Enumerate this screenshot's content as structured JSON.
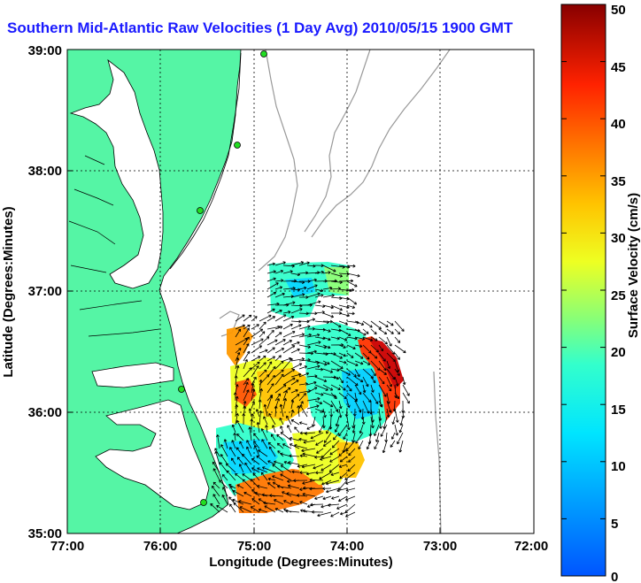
{
  "title": "Southern Mid-Atlantic Raw Velocities (1 Day Avg) 2010/05/15 1900 GMT",
  "map": {
    "x_axis": {
      "label": "Longitude (Degrees:Minutes)",
      "ticks": [
        "77:00",
        "76:00",
        "75:00",
        "74:00",
        "73:00",
        "72:00"
      ],
      "range_deg_west": [
        77,
        72
      ]
    },
    "y_axis": {
      "label": "Latitude (Degrees:Minutes)",
      "ticks": [
        "39:00",
        "38:00",
        "37:00",
        "36:00",
        "35:00"
      ],
      "range_deg_north": [
        35,
        39
      ]
    },
    "grid": "dotted",
    "land_color": "#55f5a5",
    "station_color": "#22dd22"
  },
  "colorbar": {
    "label": "Surface Velocity (cm/s)",
    "units": "cm/s",
    "range": [
      0,
      50
    ],
    "ticks": [
      "0",
      "5",
      "10",
      "15",
      "20",
      "25",
      "30",
      "35",
      "40",
      "45",
      "50"
    ],
    "colormap": "jet"
  }
}
